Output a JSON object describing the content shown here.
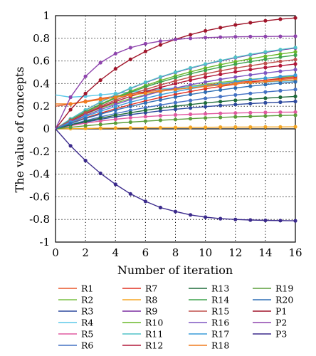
{
  "chart_data": {
    "type": "line",
    "xlabel": "Number of iteration",
    "ylabel": "The value of concepts",
    "xlim": [
      0,
      16
    ],
    "ylim": [
      -1,
      1
    ],
    "x_ticks": [
      "0",
      "2",
      "4",
      "6",
      "8",
      "10",
      "12",
      "14",
      "16"
    ],
    "y_ticks": [
      "1",
      "0.8",
      "0.6",
      "0.4",
      "0.2",
      "0",
      "-0.2",
      "-0.4",
      "-0.6",
      "-0.8",
      "-1"
    ],
    "grid": "dotted",
    "legend_position": "bottom, 4 columns",
    "x": [
      0,
      1,
      2,
      3,
      4,
      5,
      6,
      7,
      8,
      9,
      10,
      11,
      12,
      13,
      14,
      15,
      16
    ],
    "series": [
      {
        "name": "R1",
        "color": "#e8572a",
        "values": [
          0.2,
          0.22,
          0.244,
          0.267,
          0.289,
          0.309,
          0.327,
          0.344,
          0.36,
          0.374,
          0.387,
          0.399,
          0.41,
          0.42,
          0.429,
          0.437,
          0.445
        ]
      },
      {
        "name": "R2",
        "color": "#7ac143",
        "values": [
          0,
          0.07,
          0.131,
          0.183,
          0.228,
          0.267,
          0.301,
          0.33,
          0.355,
          0.377,
          0.395,
          0.411,
          0.425,
          0.437,
          0.447,
          0.456,
          0.464
        ]
      },
      {
        "name": "R3",
        "color": "#2e4a9e",
        "values": [
          0,
          0.031,
          0.059,
          0.084,
          0.106,
          0.126,
          0.143,
          0.159,
          0.173,
          0.185,
          0.196,
          0.206,
          0.215,
          0.223,
          0.23,
          0.236,
          0.242
        ]
      },
      {
        "name": "R4",
        "color": "#5bc8e8",
        "values": [
          0.3,
          0.28,
          0.288,
          0.3,
          0.313,
          0.326,
          0.339,
          0.351,
          0.362,
          0.372,
          0.382,
          0.391,
          0.399,
          0.406,
          0.413,
          0.419,
          0.425
        ]
      },
      {
        "name": "R5",
        "color": "#e05aa0",
        "values": [
          0,
          0.028,
          0.051,
          0.07,
          0.085,
          0.098,
          0.108,
          0.116,
          0.123,
          0.129,
          0.133,
          0.137,
          0.14,
          0.143,
          0.145,
          0.147,
          0.148
        ]
      },
      {
        "name": "R6",
        "color": "#4472c4",
        "values": [
          0,
          0.038,
          0.073,
          0.106,
          0.135,
          0.163,
          0.188,
          0.211,
          0.232,
          0.251,
          0.269,
          0.285,
          0.3,
          0.313,
          0.326,
          0.337,
          0.348
        ]
      },
      {
        "name": "R7",
        "color": "#e03020",
        "values": [
          0,
          0.05,
          0.096,
          0.139,
          0.178,
          0.214,
          0.247,
          0.277,
          0.305,
          0.33,
          0.354,
          0.375,
          0.395,
          0.413,
          0.43,
          0.445,
          0.459
        ]
      },
      {
        "name": "R8",
        "color": "#f5a623",
        "values": [
          0,
          0.002,
          0.004,
          0.006,
          0.007,
          0.009,
          0.01,
          0.011,
          0.012,
          0.013,
          0.014,
          0.015,
          0.016,
          0.016,
          0.017,
          0.017,
          0.018
        ]
      },
      {
        "name": "R9",
        "color": "#7b2fa0",
        "values": [
          0,
          0.087,
          0.165,
          0.236,
          0.3,
          0.357,
          0.409,
          0.456,
          0.498,
          0.536,
          0.57,
          0.601,
          0.628,
          0.653,
          0.675,
          0.696,
          0.714
        ]
      },
      {
        "name": "R10",
        "color": "#6ab82a",
        "values": [
          0,
          0.08,
          0.153,
          0.219,
          0.279,
          0.333,
          0.382,
          0.427,
          0.467,
          0.504,
          0.537,
          0.567,
          0.594,
          0.619,
          0.641,
          0.661,
          0.68
        ]
      },
      {
        "name": "R11",
        "color": "#52c2c9",
        "values": [
          0,
          0.088,
          0.167,
          0.238,
          0.302,
          0.36,
          0.412,
          0.459,
          0.501,
          0.539,
          0.573,
          0.604,
          0.632,
          0.657,
          0.68,
          0.7,
          0.718
        ]
      },
      {
        "name": "R12",
        "color": "#b2183a",
        "values": [
          0,
          0.07,
          0.133,
          0.19,
          0.241,
          0.287,
          0.329,
          0.366,
          0.4,
          0.43,
          0.457,
          0.482,
          0.504,
          0.524,
          0.542,
          0.558,
          0.573
        ]
      },
      {
        "name": "R13",
        "color": "#1e6b3a",
        "values": [
          0,
          0.035,
          0.066,
          0.095,
          0.12,
          0.143,
          0.164,
          0.183,
          0.2,
          0.215,
          0.229,
          0.241,
          0.252,
          0.262,
          0.271,
          0.279,
          0.287
        ]
      },
      {
        "name": "R14",
        "color": "#3fa34d",
        "values": [
          0,
          0.078,
          0.149,
          0.213,
          0.271,
          0.323,
          0.37,
          0.413,
          0.451,
          0.486,
          0.517,
          0.545,
          0.571,
          0.594,
          0.615,
          0.634,
          0.651
        ]
      },
      {
        "name": "R15",
        "color": "#c0504d",
        "values": [
          0,
          0.074,
          0.141,
          0.201,
          0.255,
          0.304,
          0.348,
          0.388,
          0.424,
          0.457,
          0.486,
          0.513,
          0.537,
          0.558,
          0.578,
          0.596,
          0.612
        ]
      },
      {
        "name": "R16",
        "color": "#7e57c2",
        "values": [
          0,
          0.062,
          0.119,
          0.17,
          0.216,
          0.258,
          0.296,
          0.33,
          0.361,
          0.389,
          0.414,
          0.437,
          0.458,
          0.477,
          0.494,
          0.509,
          0.523
        ]
      },
      {
        "name": "R17",
        "color": "#3a9bd9",
        "values": [
          0,
          0.057,
          0.109,
          0.156,
          0.198,
          0.236,
          0.27,
          0.301,
          0.329,
          0.354,
          0.377,
          0.398,
          0.416,
          0.433,
          0.448,
          0.462,
          0.474
        ]
      },
      {
        "name": "R18",
        "color": "#f07c1e",
        "values": [
          0.22,
          0.22,
          0.239,
          0.259,
          0.279,
          0.298,
          0.316,
          0.333,
          0.348,
          0.362,
          0.375,
          0.387,
          0.398,
          0.408,
          0.417,
          0.426,
          0.433
        ]
      },
      {
        "name": "R19",
        "color": "#5a9e3a",
        "values": [
          0,
          0.014,
          0.027,
          0.039,
          0.05,
          0.06,
          0.068,
          0.076,
          0.083,
          0.09,
          0.096,
          0.101,
          0.106,
          0.11,
          0.114,
          0.118,
          0.121
        ]
      },
      {
        "name": "R20",
        "color": "#2f6fb5",
        "values": [
          0,
          0.047,
          0.091,
          0.13,
          0.166,
          0.199,
          0.229,
          0.256,
          0.281,
          0.304,
          0.325,
          0.344,
          0.361,
          0.377,
          0.391,
          0.404,
          0.416
        ]
      },
      {
        "name": "P1",
        "color": "#a0162b",
        "values": [
          0,
          0.17,
          0.312,
          0.431,
          0.531,
          0.614,
          0.684,
          0.742,
          0.791,
          0.832,
          0.866,
          0.894,
          0.918,
          0.938,
          0.955,
          0.969,
          0.98
        ]
      },
      {
        "name": "P2",
        "color": "#8e44ad",
        "values": [
          0,
          0.28,
          0.464,
          0.585,
          0.665,
          0.717,
          0.752,
          0.775,
          0.79,
          0.8,
          0.806,
          0.81,
          0.813,
          0.815,
          0.816,
          0.817,
          0.818
        ]
      },
      {
        "name": "P3",
        "color": "#3b2a8c",
        "values": [
          0,
          -0.15,
          -0.28,
          -0.393,
          -0.49,
          -0.574,
          -0.64,
          -0.695,
          -0.73,
          -0.76,
          -0.78,
          -0.793,
          -0.8,
          -0.805,
          -0.808,
          -0.81,
          -0.812
        ]
      }
    ]
  }
}
